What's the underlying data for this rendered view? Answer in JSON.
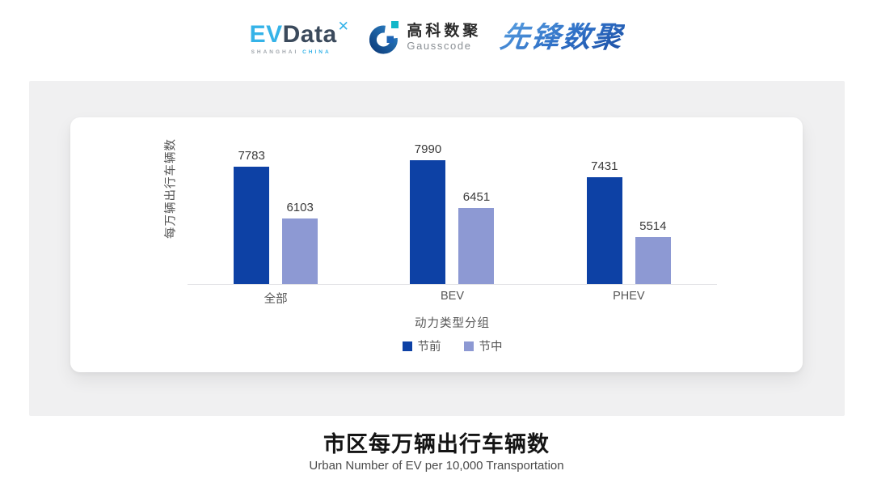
{
  "header": {
    "evdata": {
      "ev": "EV",
      "data": "Data",
      "mark": "✕",
      "sub_shanghai": "SHANGHAI",
      "sub_china": "CHINA",
      "color_blue": "#35b3e8",
      "color_dark": "#3b4a5c"
    },
    "gausscode": {
      "cn": "高科数聚",
      "en": "Gausscode",
      "color_blue": "#1d5fae",
      "color_teal": "#12b7c9"
    },
    "xianfeng": {
      "text": "先锋数聚",
      "color": "#2e6cc4"
    }
  },
  "chart_data": {
    "type": "bar",
    "title": "市区每万辆出行车辆数",
    "subtitle": "Urban Number of EV per 10,000 Transportation",
    "xlabel": "动力类型分组",
    "ylabel": "每万辆出行车辆数",
    "categories": [
      "全部",
      "BEV",
      "PHEV"
    ],
    "series": [
      {
        "name": "节前",
        "color": "#0d41a5",
        "values": [
          7783,
          7990,
          7431
        ]
      },
      {
        "name": "节中",
        "color": "#8d99d3",
        "values": [
          6103,
          6451,
          5514
        ]
      }
    ],
    "ylim": [
      4000,
      9000
    ],
    "grid": false,
    "legend_position": "bottom",
    "value_labels": true
  }
}
